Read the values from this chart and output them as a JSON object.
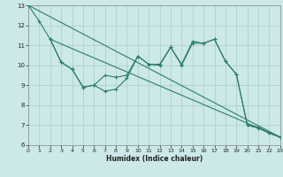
{
  "title": "",
  "xlabel": "Humidex (Indice chaleur)",
  "xlim": [
    0,
    23
  ],
  "ylim": [
    6,
    13
  ],
  "yticks": [
    6,
    7,
    8,
    9,
    10,
    11,
    12,
    13
  ],
  "xticks": [
    0,
    1,
    2,
    3,
    4,
    5,
    6,
    7,
    8,
    9,
    10,
    11,
    12,
    13,
    14,
    15,
    16,
    17,
    18,
    19,
    20,
    21,
    22,
    23
  ],
  "bg_color": "#cce8e8",
  "line_color": "#2d7d6e",
  "grid_color": "#aacccc",
  "line1_x": [
    0,
    1,
    2,
    3,
    4,
    5,
    6,
    7,
    8,
    9,
    10,
    11,
    12,
    13,
    14,
    15,
    16,
    17,
    18,
    19,
    20,
    21,
    22,
    23
  ],
  "line1_y": [
    13.0,
    12.2,
    11.3,
    10.15,
    9.8,
    8.9,
    9.0,
    8.7,
    8.8,
    9.35,
    10.45,
    10.05,
    10.05,
    10.9,
    10.05,
    11.2,
    11.1,
    11.3,
    10.2,
    9.55,
    7.0,
    6.85,
    6.6,
    6.4
  ],
  "line2_x": [
    2,
    3,
    4,
    5,
    6,
    7,
    8,
    9,
    10,
    11,
    12,
    13,
    14,
    15,
    16,
    17,
    18,
    19,
    20,
    21,
    22,
    23
  ],
  "line2_y": [
    11.3,
    10.15,
    9.8,
    8.9,
    9.0,
    9.5,
    9.4,
    9.5,
    10.45,
    10.05,
    10.0,
    10.9,
    10.0,
    11.1,
    11.1,
    11.3,
    10.2,
    9.55,
    7.0,
    6.9,
    6.6,
    6.4
  ],
  "line3_x": [
    0,
    23
  ],
  "line3_y": [
    13.0,
    6.4
  ],
  "line4_x": [
    2,
    23
  ],
  "line4_y": [
    11.3,
    6.4
  ]
}
